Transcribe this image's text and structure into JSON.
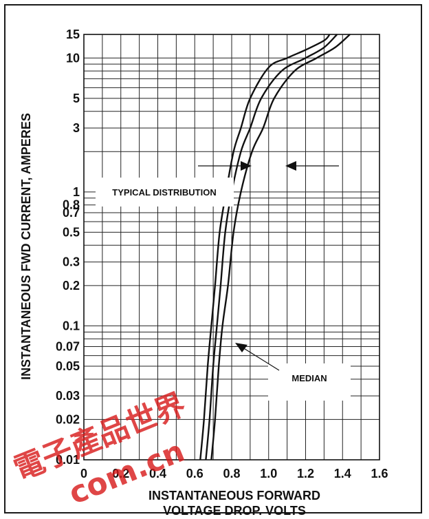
{
  "chart_data": {
    "type": "line",
    "title": "",
    "xlabel_lines": [
      "INSTANTANEOUS FORWARD",
      "VOLTAGE DROP, VOLTS"
    ],
    "ylabel": "INSTANTANEOUS FWD CURRENT, AMPERES",
    "xlim": [
      0,
      1.6
    ],
    "ylim": [
      0.01,
      15
    ],
    "yscale": "log",
    "grid": true,
    "x_ticks": [
      0,
      0.2,
      0.4,
      0.6,
      0.8,
      1.0,
      1.2,
      1.4,
      1.6
    ],
    "x_tick_labels": [
      "0",
      "0.2",
      "0.4",
      "0.6",
      "0.8",
      "1.0",
      "1.2",
      "1.4",
      "1.6"
    ],
    "y_ticks": [
      0.01,
      0.02,
      0.03,
      0.05,
      0.07,
      0.1,
      0.2,
      0.3,
      0.5,
      0.7,
      0.8,
      1,
      3,
      5,
      10,
      15
    ],
    "y_tick_labels": [
      "0.01",
      "0.02",
      "0.03",
      "0.05",
      "0.07",
      "0.1",
      "0.2",
      "0.3",
      "0.5",
      "0.7",
      "0.8",
      "1",
      "3",
      "5",
      "10",
      "15"
    ],
    "y_gridlines": [
      0.01,
      0.02,
      0.03,
      0.04,
      0.05,
      0.06,
      0.07,
      0.08,
      0.09,
      0.1,
      0.2,
      0.3,
      0.4,
      0.5,
      0.6,
      0.7,
      0.8,
      0.9,
      1,
      2,
      3,
      4,
      5,
      6,
      7,
      8,
      9,
      10,
      15
    ],
    "x_gridlines": [
      0,
      0.1,
      0.2,
      0.3,
      0.4,
      0.5,
      0.6,
      0.7,
      0.8,
      0.9,
      1.0,
      1.1,
      1.2,
      1.3,
      1.4,
      1.5,
      1.6
    ],
    "series": [
      {
        "key": "low",
        "points": [
          [
            0.63,
            0.01
          ],
          [
            0.65,
            0.02
          ],
          [
            0.67,
            0.05
          ],
          [
            0.69,
            0.1
          ],
          [
            0.71,
            0.2
          ],
          [
            0.735,
            0.5
          ],
          [
            0.77,
            1
          ],
          [
            0.81,
            2
          ],
          [
            0.85,
            3
          ],
          [
            0.9,
            5
          ],
          [
            1.0,
            8.5
          ],
          [
            1.1,
            10
          ],
          [
            1.2,
            11.5
          ],
          [
            1.3,
            13.5
          ],
          [
            1.33,
            15
          ]
        ]
      },
      {
        "key": "median",
        "points": [
          [
            0.66,
            0.01
          ],
          [
            0.68,
            0.02
          ],
          [
            0.7,
            0.05
          ],
          [
            0.72,
            0.1
          ],
          [
            0.74,
            0.2
          ],
          [
            0.765,
            0.5
          ],
          [
            0.8,
            1
          ],
          [
            0.85,
            2
          ],
          [
            0.9,
            3
          ],
          [
            0.96,
            5
          ],
          [
            1.07,
            8
          ],
          [
            1.2,
            10
          ],
          [
            1.3,
            12
          ],
          [
            1.37,
            15
          ]
        ]
      },
      {
        "key": "high",
        "points": [
          [
            0.69,
            0.01
          ],
          [
            0.71,
            0.02
          ],
          [
            0.73,
            0.05
          ],
          [
            0.75,
            0.1
          ],
          [
            0.78,
            0.2
          ],
          [
            0.81,
            0.5
          ],
          [
            0.85,
            1
          ],
          [
            0.91,
            2
          ],
          [
            0.97,
            3
          ],
          [
            1.03,
            5
          ],
          [
            1.14,
            8
          ],
          [
            1.26,
            10
          ],
          [
            1.36,
            12
          ],
          [
            1.44,
            15
          ]
        ]
      }
    ],
    "annotations": {
      "typical_distribution": "TYPICAL DISTRIBUTION",
      "median": "MEDIAN"
    }
  },
  "watermark": {
    "logo_text": "電子產品世界",
    "url_text": "com.cn"
  }
}
